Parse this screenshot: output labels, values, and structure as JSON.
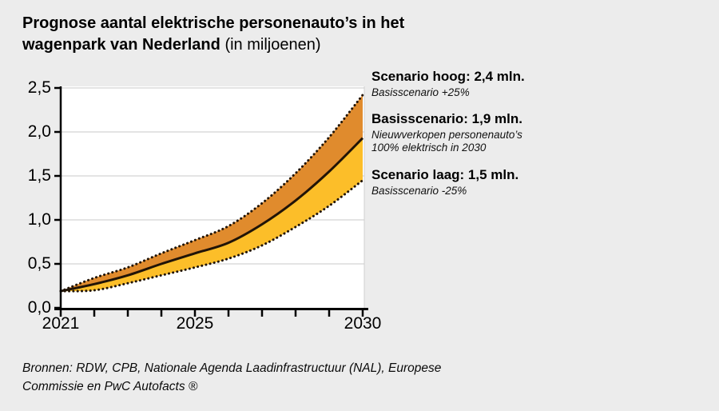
{
  "title": {
    "main": "Prognose aantal elektrische personenauto’s in het wagenpark van Nederland",
    "suffix": "(in miljoenen)"
  },
  "legend": [
    {
      "title": "Scenario hoog: 2,4 mln.",
      "subtitle": "Basisscenario +25%"
    },
    {
      "title": "Basisscenario: 1,9 mln.",
      "subtitle": "Nieuwverkopen personenauto’s\n100% elektrisch in 2030"
    },
    {
      "title": "Scenario laag: 1,5 mln.",
      "subtitle": "Basisscenario -25%"
    }
  ],
  "source": "Bronnen: RDW, CPB, Nationale Agenda Laadinfrastructuur (NAL), Europese\nCommissie en PwC Autofacts ®",
  "colors": {
    "background": "#ececec",
    "plot_background": "#ffffff",
    "band_high": "#e08b2d",
    "band_low": "#fcbe29",
    "line": "#211407",
    "grid": "#dcdcdc",
    "plot_right_border": "#d0d0d0",
    "axis": "#000000"
  },
  "chart_data": {
    "type": "area",
    "title": "Prognose aantal elektrische personenauto’s in het wagenpark van Nederland (in miljoenen)",
    "x": [
      2021,
      2022,
      2023,
      2024,
      2025,
      2026,
      2027,
      2028,
      2029,
      2030
    ],
    "series": [
      {
        "name": "Scenario hoog (Basisscenario +25%)",
        "line_style": "dotted",
        "end_value": 2.4,
        "values": [
          0.19,
          0.34,
          0.46,
          0.62,
          0.77,
          0.93,
          1.19,
          1.53,
          1.94,
          2.42
        ]
      },
      {
        "name": "Basisscenario",
        "line_style": "solid",
        "end_value": 1.9,
        "values": [
          0.19,
          0.27,
          0.37,
          0.5,
          0.62,
          0.74,
          0.95,
          1.22,
          1.55,
          1.93
        ]
      },
      {
        "name": "Scenario laag (Basisscenario -25%)",
        "line_style": "dotted",
        "end_value": 1.5,
        "values": [
          0.19,
          0.2,
          0.28,
          0.37,
          0.46,
          0.56,
          0.71,
          0.92,
          1.16,
          1.45
        ]
      }
    ],
    "ylim": [
      0,
      2.5
    ],
    "yticks": [
      0,
      0.5,
      1.0,
      1.5,
      2.0,
      2.5
    ],
    "ytick_labels": [
      "0,0",
      "0,5",
      "1,0",
      "1,5",
      "2,0",
      "2,5"
    ],
    "xtick_years_with_marks": [
      2021,
      2022,
      2023,
      2024,
      2025,
      2026,
      2027,
      2028,
      2029,
      2030
    ],
    "xtick_labels": [
      {
        "year": 2021,
        "label": "2021"
      },
      {
        "year": 2025,
        "label": "2025"
      },
      {
        "year": 2030,
        "label": "2030"
      }
    ],
    "grid": true,
    "legend_position": "right",
    "ylabel": "",
    "xlabel": ""
  }
}
